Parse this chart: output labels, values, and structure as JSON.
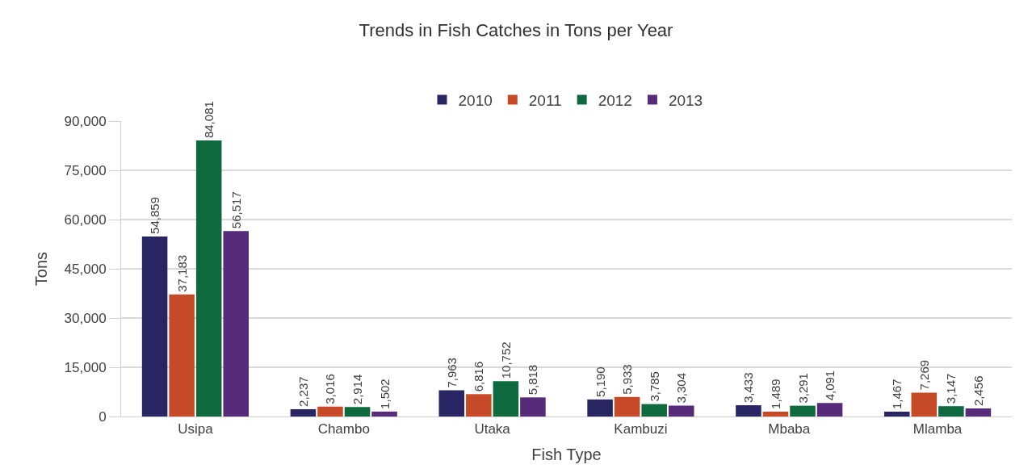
{
  "chart_data": {
    "type": "bar",
    "title": "Trends in Fish Catches in Tons per Year",
    "xlabel": "Fish Type",
    "ylabel": "Tons",
    "categories": [
      "Usipa",
      "Chambo",
      "Utaka",
      "Kambuzi",
      "Mbaba",
      "Mlamba"
    ],
    "series": [
      {
        "name": "2010",
        "color": "#282562",
        "values": [
          54859,
          2237,
          7963,
          5190,
          3433,
          1467
        ],
        "value_labels": [
          "54,859",
          "2,237",
          "7,963",
          "5,190",
          "3,433",
          "1,467"
        ]
      },
      {
        "name": "2011",
        "color": "#c64a27",
        "values": [
          37183,
          3016,
          6816,
          5933,
          1489,
          7269
        ],
        "value_labels": [
          "37,183",
          "3,016",
          "6,816",
          "5,933",
          "1,489",
          "7,269"
        ]
      },
      {
        "name": "2012",
        "color": "#0e6a3e",
        "values": [
          84081,
          2914,
          10752,
          3785,
          3291,
          3147
        ],
        "value_labels": [
          "84,081",
          "2,914",
          "10,752",
          "3,785",
          "3,291",
          "3,147"
        ]
      },
      {
        "name": "2013",
        "color": "#552b7a",
        "values": [
          56517,
          1502,
          5818,
          3304,
          4091,
          2456
        ],
        "value_labels": [
          "56,517",
          "1,502",
          "5,818",
          "3,304",
          "4,091",
          "2,456"
        ]
      }
    ],
    "ylim": [
      0,
      90000
    ],
    "yticks": [
      {
        "value": 0,
        "label": "0"
      },
      {
        "value": 15000,
        "label": "15,000"
      },
      {
        "value": 30000,
        "label": "30,000"
      },
      {
        "value": 45000,
        "label": "45,000"
      },
      {
        "value": 60000,
        "label": "60,000"
      },
      {
        "value": 75000,
        "label": "75,000"
      },
      {
        "value": 90000,
        "label": "90,000"
      }
    ],
    "grid": "y",
    "legend": "top"
  }
}
